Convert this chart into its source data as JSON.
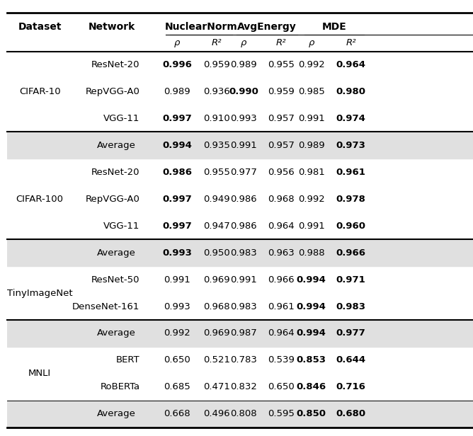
{
  "col_headers_main": [
    "Dataset",
    "Network",
    "NuclearNorm",
    "AvgEnergy",
    "MDE"
  ],
  "sub_headers": [
    "ρ",
    "R²",
    "ρ",
    "R²",
    "ρ",
    "R²"
  ],
  "rows": [
    {
      "dataset": "CIFAR-10",
      "network": "ResNet-20",
      "nn_rho": "0.996",
      "nn_r2": "0.959",
      "ae_rho": "0.989",
      "ae_r2": "0.955",
      "mde_rho": "0.992",
      "mde_r2": "0.964",
      "bold": [
        "nn_rho",
        "mde_r2"
      ],
      "avg": false
    },
    {
      "dataset": "",
      "network": "RepVGG-A0",
      "nn_rho": "0.989",
      "nn_r2": "0.936",
      "ae_rho": "0.990",
      "ae_r2": "0.959",
      "mde_rho": "0.985",
      "mde_r2": "0.980",
      "bold": [
        "ae_rho",
        "mde_r2"
      ],
      "avg": false
    },
    {
      "dataset": "",
      "network": "VGG-11",
      "nn_rho": "0.997",
      "nn_r2": "0.910",
      "ae_rho": "0.993",
      "ae_r2": "0.957",
      "mde_rho": "0.991",
      "mde_r2": "0.974",
      "bold": [
        "nn_rho",
        "mde_r2"
      ],
      "avg": false
    },
    {
      "dataset": "",
      "network": "Average",
      "nn_rho": "0.994",
      "nn_r2": "0.935",
      "ae_rho": "0.991",
      "ae_r2": "0.957",
      "mde_rho": "0.989",
      "mde_r2": "0.973",
      "bold": [
        "nn_rho",
        "mde_r2"
      ],
      "avg": true
    },
    {
      "dataset": "CIFAR-100",
      "network": "ResNet-20",
      "nn_rho": "0.986",
      "nn_r2": "0.955",
      "ae_rho": "0.977",
      "ae_r2": "0.956",
      "mde_rho": "0.981",
      "mde_r2": "0.961",
      "bold": [
        "nn_rho",
        "mde_r2"
      ],
      "avg": false
    },
    {
      "dataset": "",
      "network": "RepVGG-A0",
      "nn_rho": "0.997",
      "nn_r2": "0.949",
      "ae_rho": "0.986",
      "ae_r2": "0.968",
      "mde_rho": "0.992",
      "mde_r2": "0.978",
      "bold": [
        "nn_rho",
        "mde_r2"
      ],
      "avg": false
    },
    {
      "dataset": "",
      "network": "VGG-11",
      "nn_rho": "0.997",
      "nn_r2": "0.947",
      "ae_rho": "0.986",
      "ae_r2": "0.964",
      "mde_rho": "0.991",
      "mde_r2": "0.960",
      "bold": [
        "nn_rho",
        "mde_r2"
      ],
      "avg": false
    },
    {
      "dataset": "",
      "network": "Average",
      "nn_rho": "0.993",
      "nn_r2": "0.950",
      "ae_rho": "0.983",
      "ae_r2": "0.963",
      "mde_rho": "0.988",
      "mde_r2": "0.966",
      "bold": [
        "nn_rho",
        "mde_r2"
      ],
      "avg": true
    },
    {
      "dataset": "TinyImageNet",
      "network": "ResNet-50",
      "nn_rho": "0.991",
      "nn_r2": "0.969",
      "ae_rho": "0.991",
      "ae_r2": "0.966",
      "mde_rho": "0.994",
      "mde_r2": "0.971",
      "bold": [
        "mde_rho",
        "mde_r2"
      ],
      "avg": false
    },
    {
      "dataset": "",
      "network": "DenseNet-161",
      "nn_rho": "0.993",
      "nn_r2": "0.968",
      "ae_rho": "0.983",
      "ae_r2": "0.961",
      "mde_rho": "0.994",
      "mde_r2": "0.983",
      "bold": [
        "mde_rho",
        "mde_r2"
      ],
      "avg": false
    },
    {
      "dataset": "",
      "network": "Average",
      "nn_rho": "0.992",
      "nn_r2": "0.969",
      "ae_rho": "0.987",
      "ae_r2": "0.964",
      "mde_rho": "0.994",
      "mde_r2": "0.977",
      "bold": [
        "mde_rho",
        "mde_r2"
      ],
      "avg": true
    },
    {
      "dataset": "MNLI",
      "network": "BERT",
      "nn_rho": "0.650",
      "nn_r2": "0.521",
      "ae_rho": "0.783",
      "ae_r2": "0.539",
      "mde_rho": "0.853",
      "mde_r2": "0.644",
      "bold": [
        "mde_rho",
        "mde_r2"
      ],
      "avg": false
    },
    {
      "dataset": "",
      "network": "RoBERTa",
      "nn_rho": "0.685",
      "nn_r2": "0.471",
      "ae_rho": "0.832",
      "ae_r2": "0.650",
      "mde_rho": "0.846",
      "mde_r2": "0.716",
      "bold": [
        "mde_rho",
        "mde_r2"
      ],
      "avg": false
    },
    {
      "dataset": "",
      "network": "Average",
      "nn_rho": "0.668",
      "nn_r2": "0.496",
      "ae_rho": "0.808",
      "ae_r2": "0.595",
      "mde_rho": "0.850",
      "mde_r2": "0.680",
      "bold": [
        "mde_rho",
        "mde_r2"
      ],
      "avg": true
    }
  ],
  "dataset_groups": {
    "CIFAR-10": [
      0,
      2
    ],
    "CIFAR-100": [
      4,
      6
    ],
    "TinyImageNet": [
      8,
      9
    ],
    "MNLI": [
      11,
      12
    ]
  },
  "group_separators_after": [
    3,
    7,
    10
  ],
  "avg_row_indices": [
    3,
    7,
    10,
    13
  ],
  "avg_bg_color": "#e0e0e0"
}
